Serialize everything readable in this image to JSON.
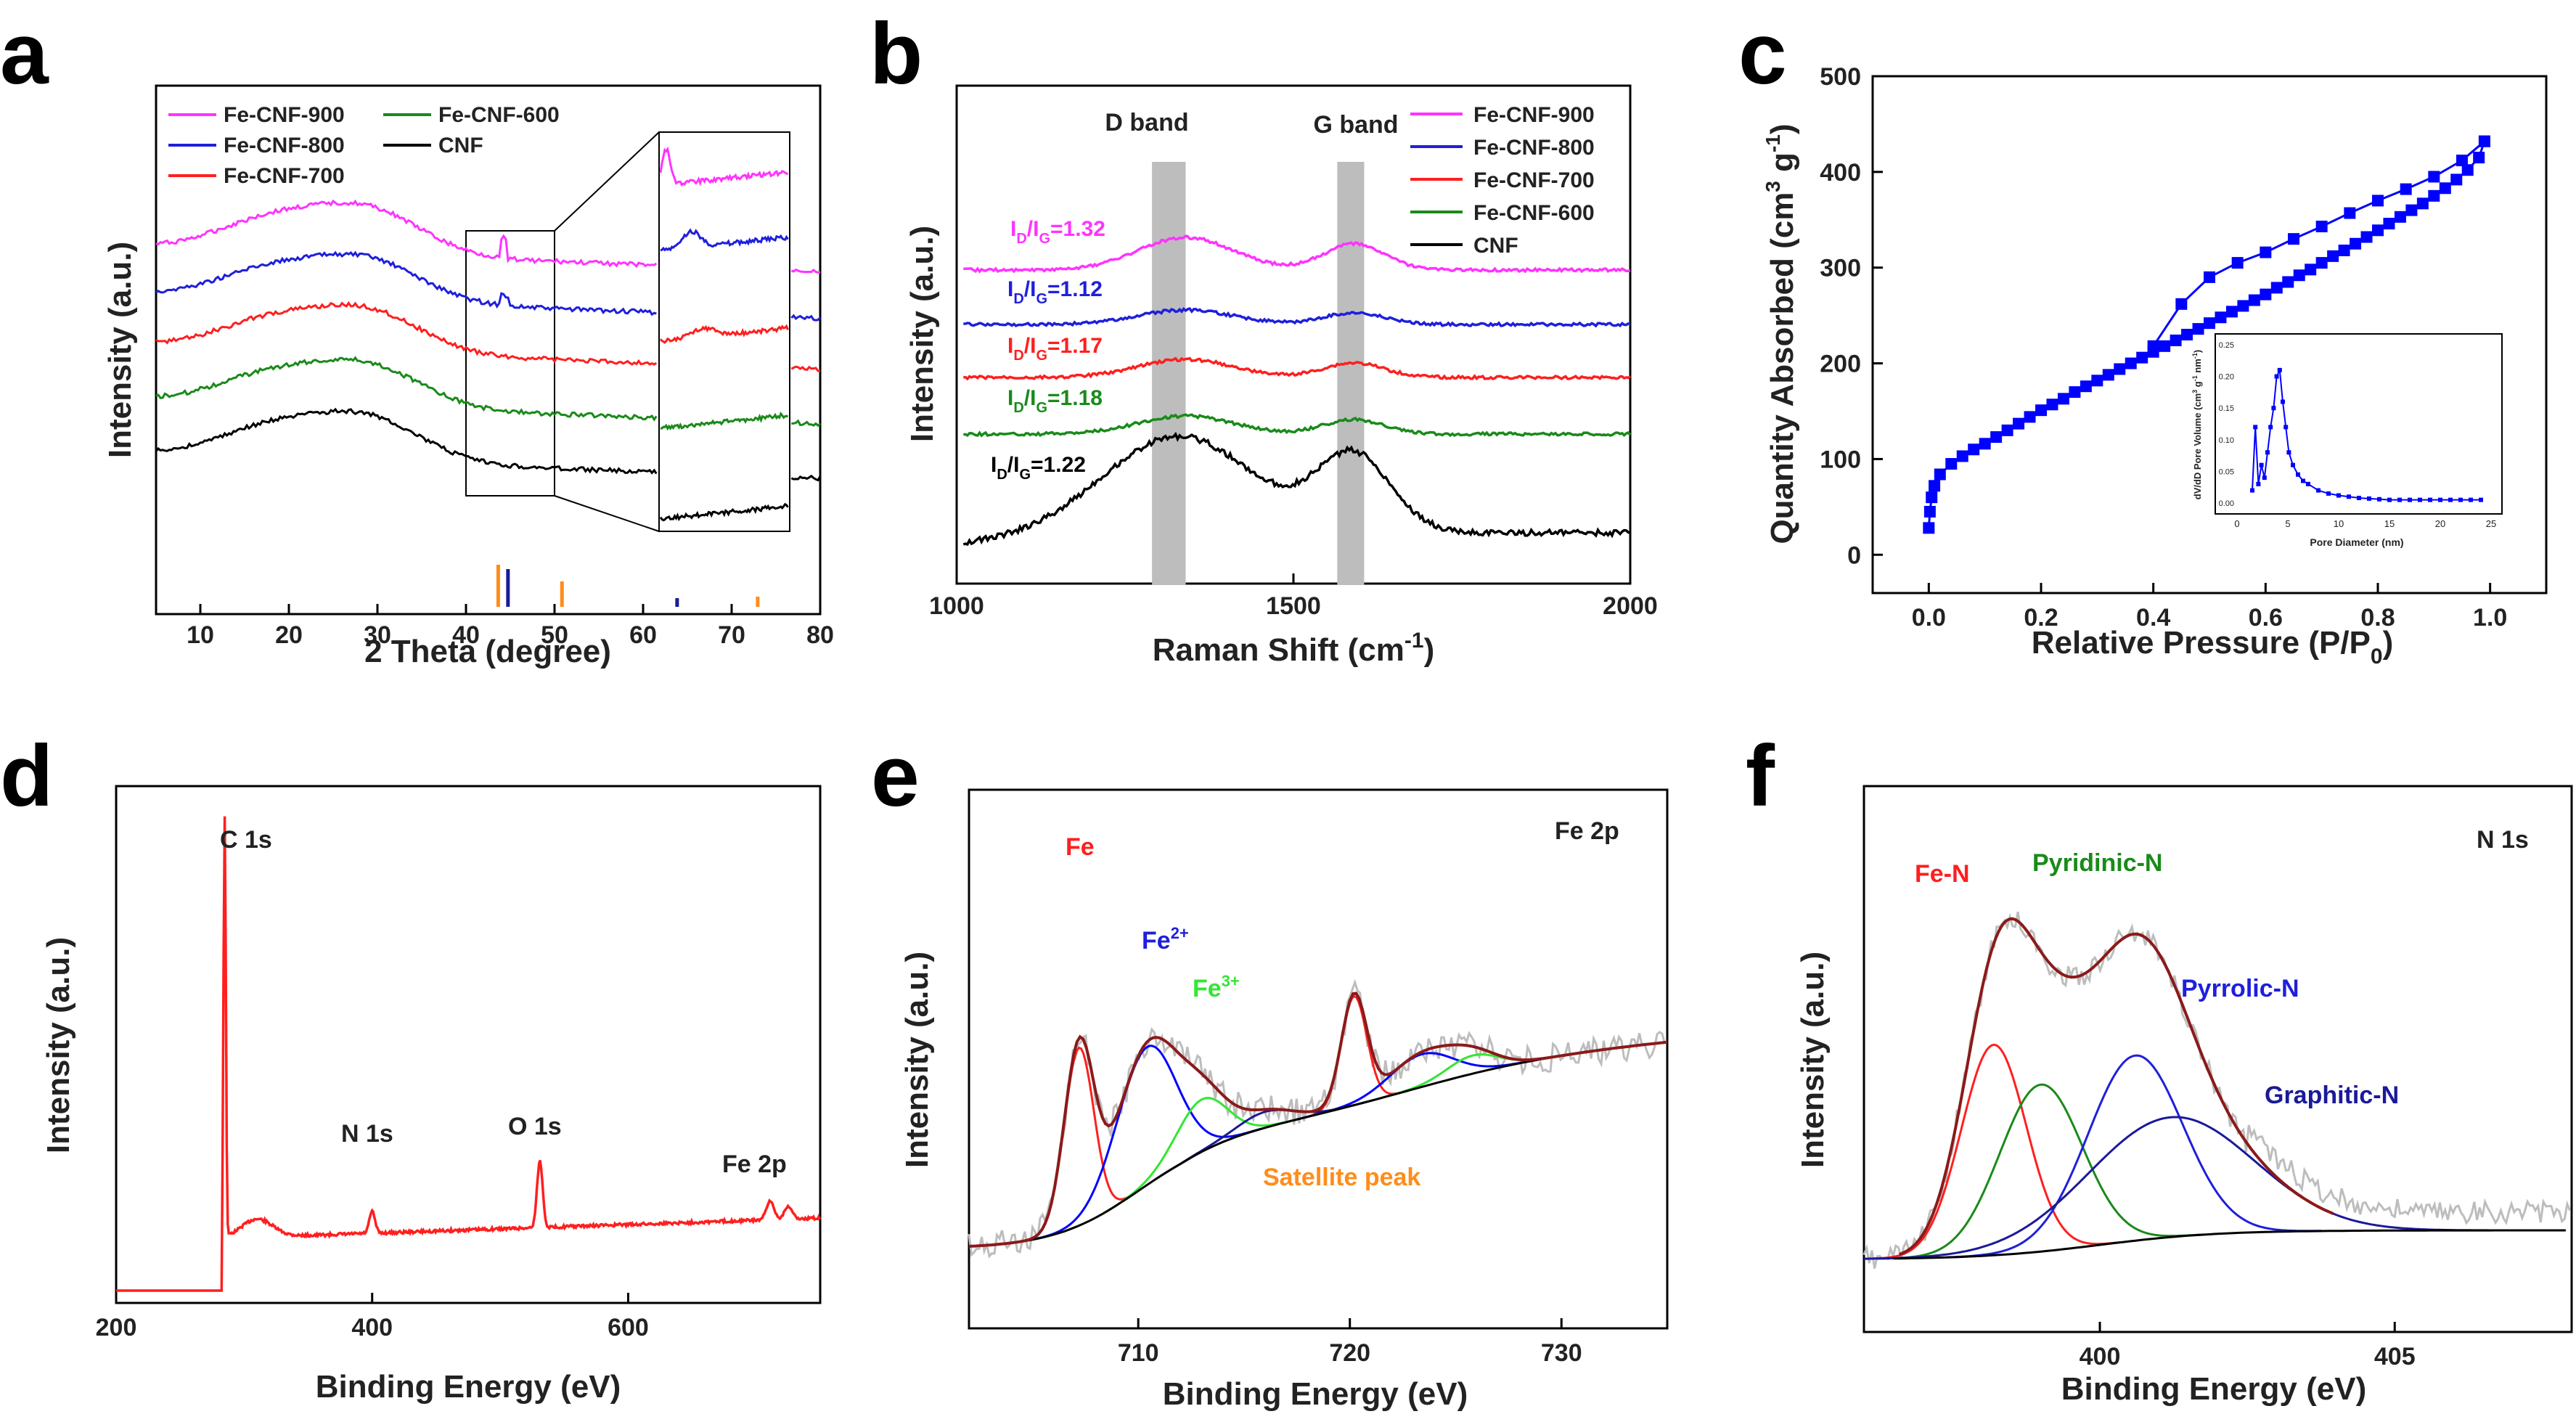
{
  "panels": {
    "a": "a",
    "b": "b",
    "c": "c",
    "d": "d",
    "e": "e",
    "f": "f"
  },
  "colors": {
    "magenta": "#ff33ff",
    "blue": "#1f1fdc",
    "red": "#ff1f1f",
    "green": "#1a8a1a",
    "black": "#000000",
    "orange": "#ff8c1a",
    "darkred": "#8b1a1a",
    "lime": "#33e633",
    "navy": "#1a1a99",
    "gray": "#bdbdbd",
    "fe_blue": "#0000ff"
  },
  "chart_data": [
    {
      "panel": "a",
      "type": "line",
      "xlabel": "2 Theta (degree)",
      "ylabel": "Intensity (a.u.)",
      "xlim": [
        5,
        80
      ],
      "xticks": [
        10,
        20,
        30,
        40,
        50,
        60,
        70,
        80
      ],
      "legend_placement": "top-left",
      "series": [
        {
          "name": "Fe-CNF-900",
          "color": "#ff33ff"
        },
        {
          "name": "Fe-CNF-800",
          "color": "#1f1fdc"
        },
        {
          "name": "Fe-CNF-700",
          "color": "#ff1f1f"
        },
        {
          "name": "Fe-CNF-600",
          "color": "#1a8a1a"
        },
        {
          "name": "CNF",
          "color": "#000000"
        }
      ],
      "reference_bars_x": [
        43.6,
        44.7,
        50.8,
        63.8,
        72.9
      ],
      "inset_range": [
        40,
        50
      ]
    },
    {
      "panel": "b",
      "type": "line",
      "xlabel": "Raman Shift (cm",
      "xlabel_sup": "-1",
      "xlabel_end": ")",
      "ylabel": "Intensity (a.u.)",
      "xlim": [
        1000,
        2000
      ],
      "xticks": [
        1000,
        1500,
        2000
      ],
      "band_labels": [
        "D band",
        "G band"
      ],
      "bands_x": [
        1340,
        1590
      ],
      "legend_placement": "top-right",
      "series": [
        {
          "name": "Fe-CNF-900",
          "color": "#ff33ff",
          "ratio": "1.32"
        },
        {
          "name": "Fe-CNF-800",
          "color": "#1f1fdc",
          "ratio": "1.12"
        },
        {
          "name": "Fe-CNF-700",
          "color": "#ff1f1f",
          "ratio": "1.17"
        },
        {
          "name": "Fe-CNF-600",
          "color": "#1a8a1a",
          "ratio": "1.18"
        },
        {
          "name": "CNF",
          "color": "#000000",
          "ratio": "1.22"
        }
      ],
      "ratio_prefix": "I",
      "ratio_sub_d": "D",
      "ratio_sep": "/I",
      "ratio_sub_g": "G",
      "ratio_eq": "="
    },
    {
      "panel": "c",
      "type": "scatter",
      "xlabel": "Relative Pressure (P/P",
      "xlabel_sub": "0",
      "xlabel_end": ")",
      "ylabel": "Quantity Absorbed (cm",
      "ylabel_sup1": "3",
      "ylabel_mid": " g",
      "ylabel_sup2": "-1",
      "ylabel_end": ")",
      "xlim": [
        -0.1,
        1.1
      ],
      "ylim": [
        -40,
        500
      ],
      "xticks": [
        0.0,
        0.2,
        0.4,
        0.6,
        0.8,
        1.0
      ],
      "yticks": [
        0,
        100,
        200,
        300,
        400,
        500
      ],
      "adsorption": {
        "x": [
          0.0,
          0.002,
          0.005,
          0.01,
          0.02,
          0.04,
          0.06,
          0.08,
          0.1,
          0.12,
          0.14,
          0.16,
          0.18,
          0.2,
          0.22,
          0.24,
          0.26,
          0.28,
          0.3,
          0.32,
          0.34,
          0.36,
          0.38,
          0.4,
          0.42,
          0.44,
          0.46,
          0.48,
          0.5,
          0.52,
          0.54,
          0.56,
          0.58,
          0.6,
          0.62,
          0.64,
          0.66,
          0.68,
          0.7,
          0.72,
          0.74,
          0.76,
          0.78,
          0.8,
          0.82,
          0.84,
          0.86,
          0.88,
          0.9,
          0.92,
          0.94,
          0.96,
          0.98,
          0.99
        ],
        "y": [
          28,
          45,
          60,
          72,
          84,
          95,
          103,
          110,
          116,
          123,
          130,
          137,
          144,
          151,
          157,
          163,
          170,
          176,
          182,
          188,
          194,
          200,
          206,
          212,
          218,
          224,
          230,
          236,
          242,
          248,
          254,
          260,
          266,
          272,
          279,
          285,
          292,
          298,
          305,
          312,
          318,
          325,
          332,
          339,
          346,
          353,
          360,
          367,
          375,
          383,
          392,
          402,
          415,
          432
        ]
      },
      "desorption": {
        "x": [
          0.99,
          0.95,
          0.9,
          0.85,
          0.8,
          0.75,
          0.7,
          0.65,
          0.6,
          0.55,
          0.5,
          0.45,
          0.4
        ],
        "y": [
          432,
          412,
          395,
          382,
          370,
          357,
          343,
          330,
          316,
          305,
          290,
          262,
          218
        ]
      },
      "inset": {
        "xlabel": "Pore Diameter (nm)",
        "ylabel": "dV/dD Pore Volume (cm",
        "ylabel_sup1": "3",
        "ylabel_mid": " g",
        "ylabel_sup2": "-1",
        "ylabel_mid2": " nm",
        "ylabel_end": ")",
        "xlim": [
          0,
          25
        ],
        "ylim": [
          0,
          0.25
        ],
        "xticks": [
          0,
          5,
          10,
          15,
          20,
          25
        ],
        "yticks": [
          0.0,
          0.05,
          0.1,
          0.15,
          0.2,
          0.25
        ],
        "x": [
          1.5,
          1.8,
          2.1,
          2.4,
          2.7,
          3.0,
          3.3,
          3.6,
          3.9,
          4.2,
          4.5,
          4.8,
          5.1,
          5.5,
          6.0,
          6.5,
          7.0,
          8.0,
          9.0,
          10.0,
          11.0,
          12.0,
          13.0,
          14.0,
          15.0,
          16.0,
          17.0,
          18.0,
          19.0,
          20.0,
          21.0,
          22.0,
          23.0,
          24.0
        ],
        "y": [
          0.02,
          0.12,
          0.03,
          0.06,
          0.04,
          0.08,
          0.12,
          0.15,
          0.2,
          0.21,
          0.16,
          0.12,
          0.08,
          0.06,
          0.045,
          0.035,
          0.03,
          0.02,
          0.015,
          0.012,
          0.01,
          0.008,
          0.007,
          0.006,
          0.005,
          0.005,
          0.005,
          0.005,
          0.005,
          0.005,
          0.005,
          0.005,
          0.005,
          0.005
        ]
      }
    },
    {
      "panel": "d",
      "type": "line",
      "xlabel": "Binding Energy (eV)",
      "ylabel": "Intensity (a.u.)",
      "xlim": [
        200,
        750
      ],
      "xticks": [
        200,
        400,
        600
      ],
      "peak_labels": [
        "C 1s",
        "N 1s",
        "O 1s",
        "Fe 2p"
      ],
      "peak_positions": [
        284.6,
        400,
        531,
        711
      ],
      "color": "#ff1f1f"
    },
    {
      "panel": "e",
      "type": "line",
      "xlabel": "Binding Energy (eV)",
      "ylabel": "Intensity (a.u.)",
      "xlim": [
        702,
        735
      ],
      "xticks": [
        710,
        720,
        730
      ],
      "title": "Fe 2p",
      "component_labels": {
        "fe": "Fe",
        "fe2": "Fe",
        "fe2_sup": "2+",
        "fe3": "Fe",
        "fe3_sup": "3+",
        "sat": "Satellite peak"
      }
    },
    {
      "panel": "f",
      "type": "line",
      "xlabel": "Binding Energy (eV)",
      "ylabel": "Intensity (a.u.)",
      "xlim": [
        396,
        408
      ],
      "xticks": [
        400,
        405
      ],
      "title": "N 1s",
      "component_labels": [
        "Fe-N",
        "Pyridinic-N",
        "Pyrrolic-N",
        "Graphitic-N"
      ],
      "component_centers": [
        398.2,
        399.0,
        400.6,
        401.2
      ]
    }
  ]
}
